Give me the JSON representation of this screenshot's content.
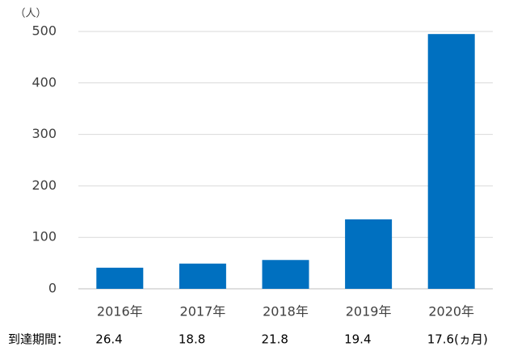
{
  "chart_data": {
    "type": "bar",
    "y_unit": "（人）",
    "categories": [
      "2016年",
      "2017年",
      "2018年",
      "2019年",
      "2020年"
    ],
    "values": [
      41,
      49,
      56,
      135,
      495
    ],
    "color": "#0070c0",
    "ylim": [
      0,
      500
    ],
    "yticks": [
      0,
      100,
      200,
      300,
      400,
      500
    ],
    "grid": true,
    "period_label": "到達期間：",
    "period_values": [
      "26.4",
      "18.8",
      "21.8",
      "19.4",
      "17.6(ヵ月)"
    ]
  }
}
